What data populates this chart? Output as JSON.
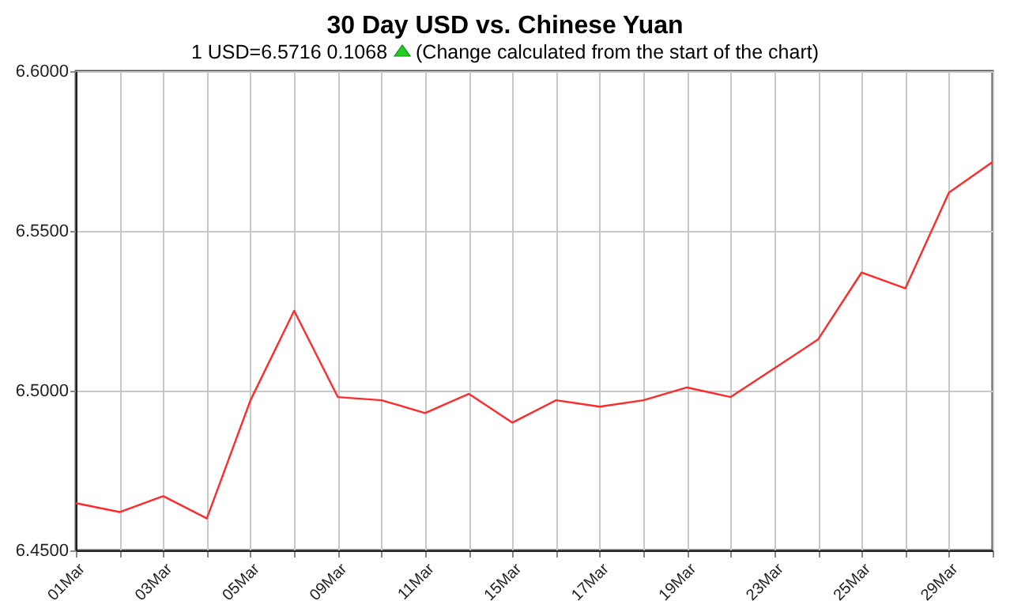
{
  "chart_data": {
    "type": "line",
    "title": "30 Day USD vs. Chinese Yuan",
    "subtitle": "1 USD=6.5716  0.1068",
    "annotations": [
      "(Change calculated from the start of the chart)"
    ],
    "categories": [
      "01Mar",
      null,
      "03Mar",
      null,
      "05Mar",
      null,
      "09Mar",
      null,
      "11Mar",
      null,
      "15Mar",
      null,
      "17Mar",
      null,
      "19Mar",
      null,
      "23Mar",
      null,
      "25Mar",
      null,
      "29Mar",
      null
    ],
    "series": [
      {
        "color": "#ff2a2a",
        "values": [
          6.4648,
          6.462,
          6.467,
          6.46,
          6.497,
          6.525,
          6.498,
          6.497,
          6.493,
          6.499,
          6.49,
          6.497,
          6.495,
          6.497,
          6.501,
          6.498,
          6.507,
          6.516,
          6.537,
          6.532,
          6.562,
          6.5716
        ]
      }
    ],
    "ylim": [
      6.45,
      6.6
    ],
    "yticks": [
      {
        "value": 6.45,
        "label": "6.4500"
      },
      {
        "value": 6.5,
        "label": "6.5000"
      },
      {
        "value": 6.55,
        "label": "6.5500"
      },
      {
        "value": 6.6,
        "label": "6.6000"
      }
    ],
    "grid": true,
    "legend": false,
    "marker": "none",
    "line_style": "solid"
  }
}
